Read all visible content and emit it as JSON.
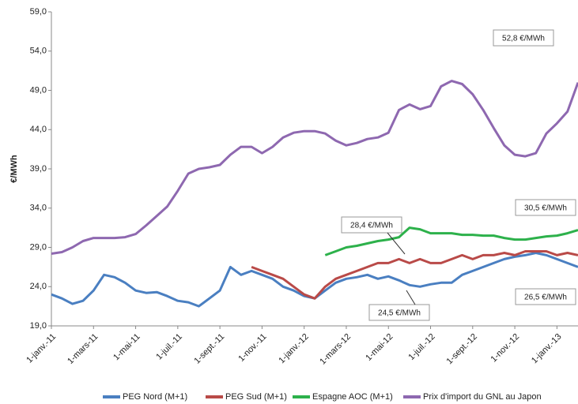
{
  "chart_data": {
    "type": "line",
    "y_label": "€/MWh",
    "categories": [
      "1-janv.-11",
      null,
      null,
      null,
      "1-mars-11",
      null,
      null,
      null,
      "1-mai-11",
      null,
      null,
      null,
      "1-juil.-11",
      null,
      null,
      null,
      "1-sept.-11",
      null,
      null,
      null,
      "1-nov.-11",
      null,
      null,
      null,
      "1-janv.-12",
      null,
      null,
      null,
      "1-mars-12",
      null,
      null,
      null,
      "1-mai-12",
      null,
      null,
      null,
      "1-juil.-12",
      null,
      null,
      null,
      "1-sept.-12",
      null,
      null,
      null,
      "1-nov.-12",
      null,
      null,
      null,
      "1-janv.-13",
      null,
      null
    ],
    "series": [
      {
        "name": "PEG Nord (M+1)",
        "color": "#4a7fc1",
        "values": [
          23,
          22.5,
          21.8,
          22.2,
          23.5,
          25.5,
          25.2,
          24.5,
          23.5,
          23.2,
          23.3,
          22.8,
          22.2,
          22.0,
          21.5,
          22.5,
          23.5,
          26.5,
          25.5,
          26.0,
          25.5,
          25.0,
          24.0,
          23.5,
          22.8,
          22.5,
          23.5,
          24.5,
          25.0,
          25.2,
          25.5,
          25.0,
          25.3,
          24.8,
          24.2,
          24.0,
          24.3,
          24.5,
          24.5,
          25.5,
          26.0,
          26.5,
          27.0,
          27.5,
          27.8,
          28.0,
          28.3,
          28.0,
          27.5,
          27.0,
          26.5
        ]
      },
      {
        "name": "PEG Sud (M+1)",
        "color": "#b94a48",
        "values": [
          null,
          null,
          null,
          null,
          null,
          null,
          null,
          null,
          null,
          null,
          null,
          null,
          null,
          null,
          null,
          null,
          null,
          null,
          null,
          26.5,
          26.0,
          25.5,
          25.0,
          24.0,
          23.0,
          22.5,
          24.0,
          25.0,
          25.5,
          26.0,
          26.5,
          27.0,
          27.0,
          27.5,
          27.0,
          27.5,
          27.0,
          27.0,
          27.5,
          28.0,
          27.5,
          28.0,
          28.0,
          28.3,
          28.0,
          28.5,
          28.5,
          28.5,
          28.0,
          28.3,
          28.0
        ]
      },
      {
        "name": "Espagne AOC (M+1)",
        "color": "#2db14b",
        "values": [
          null,
          null,
          null,
          null,
          null,
          null,
          null,
          null,
          null,
          null,
          null,
          null,
          null,
          null,
          null,
          null,
          null,
          null,
          null,
          null,
          null,
          null,
          null,
          null,
          null,
          null,
          28.0,
          28.5,
          29.0,
          29.2,
          29.5,
          29.8,
          30.0,
          30.3,
          31.5,
          31.3,
          30.8,
          30.8,
          30.8,
          30.6,
          30.6,
          30.5,
          30.5,
          30.2,
          30.0,
          30.0,
          30.2,
          30.4,
          30.5,
          30.8,
          31.2
        ]
      },
      {
        "name": "Prix d'import du GNL au Japon",
        "color": "#8e68b0",
        "values": [
          28.2,
          28.4,
          29.0,
          29.8,
          30.2,
          30.2,
          30.2,
          30.3,
          30.7,
          31.8,
          33.0,
          34.2,
          36.2,
          38.4,
          39.0,
          39.2,
          39.5,
          40.8,
          41.8,
          41.8,
          41.0,
          41.8,
          43.0,
          43.6,
          43.8,
          43.8,
          43.5,
          42.6,
          42.0,
          42.3,
          42.8,
          43.0,
          43.6,
          46.5,
          47.2,
          46.6,
          47.0,
          49.5,
          50.2,
          49.8,
          48.5,
          46.5,
          44.2,
          42.0,
          40.8,
          40.6,
          41.0,
          43.5,
          44.8,
          46.3,
          50.0
        ]
      }
    ],
    "ylim": [
      19,
      59
    ],
    "yticks": [
      {
        "value": 19,
        "label": "19,0"
      },
      {
        "value": 24,
        "label": "24,0"
      },
      {
        "value": 29,
        "label": "29,0"
      },
      {
        "value": 34,
        "label": "34,0"
      },
      {
        "value": 39,
        "label": "39,0"
      },
      {
        "value": 44,
        "label": "44,0"
      },
      {
        "value": 49,
        "label": "49,0"
      },
      {
        "value": 54,
        "label": "54,0"
      },
      {
        "value": 59,
        "label": "59,0"
      }
    ],
    "grid": false,
    "legend": "bottom",
    "annotations": [
      {
        "text": "52,8 €/MWh"
      },
      {
        "text": "30,5 €/MWh"
      },
      {
        "text": "28,4 €/MWh"
      },
      {
        "text": "24,5 €/MWh"
      },
      {
        "text": "26,5 €/MWh"
      }
    ]
  }
}
